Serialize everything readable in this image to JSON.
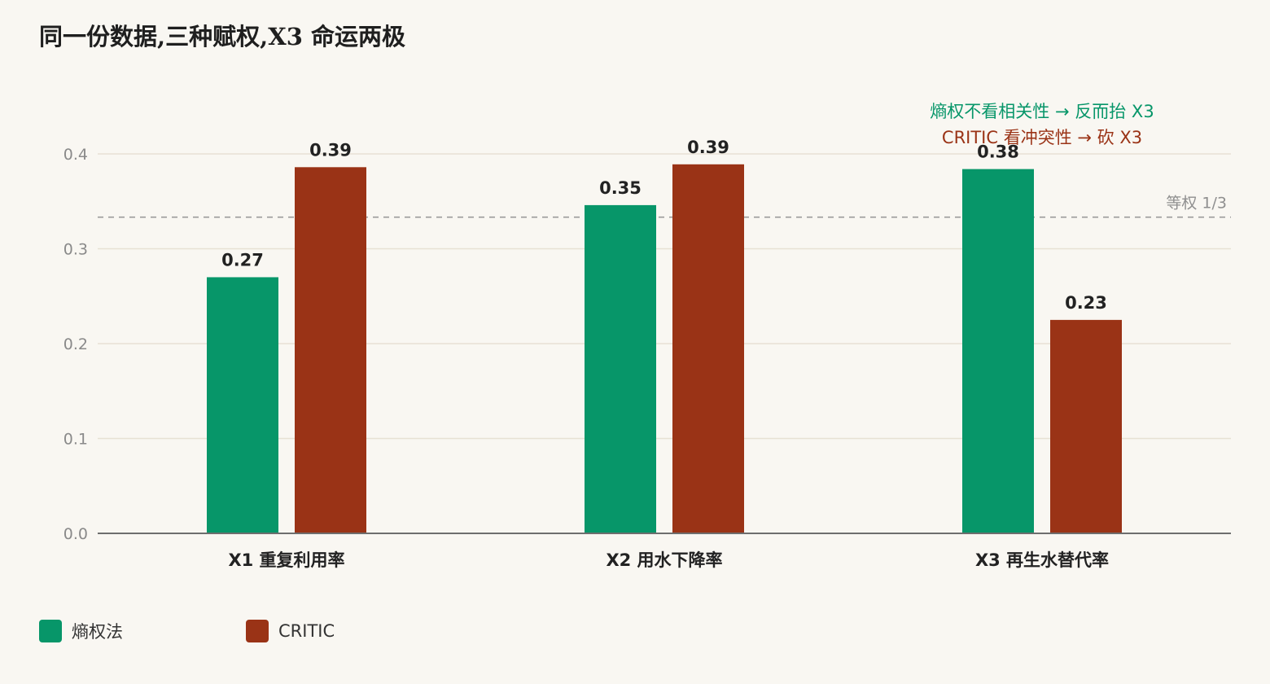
{
  "chart_data": {
    "type": "bar",
    "title": "同一份数据,三种赋权,X3 命运两极",
    "categories": [
      "X1 重复利用率",
      "X2 用水下降率",
      "X3 再生水替代率"
    ],
    "series": [
      {
        "name": "熵权法",
        "color": "#079669",
        "values": [
          0.27,
          0.346,
          0.384
        ],
        "labels": [
          "0.27",
          "0.35",
          "0.38"
        ]
      },
      {
        "name": "CRITIC",
        "color": "#9a3316",
        "values": [
          0.386,
          0.389,
          0.225
        ],
        "labels": [
          "0.39",
          "0.39",
          "0.23"
        ]
      }
    ],
    "ylim": [
      0,
      0.4
    ],
    "yticks": [
      "0.0",
      "0.1",
      "0.2",
      "0.3",
      "0.4"
    ],
    "ytick_values": [
      0,
      0.1,
      0.2,
      0.3,
      0.4
    ],
    "grid": true,
    "legend_position": "bottom-left",
    "reference_line": {
      "value": 0.3333,
      "label": "等权 1/3"
    },
    "annotations": [
      {
        "text": "熵权不看相关性 → 反而抬 X3",
        "color": "#079669"
      },
      {
        "text": "CRITIC 看冲突性 → 砍 X3",
        "color": "#9a3316"
      }
    ]
  }
}
